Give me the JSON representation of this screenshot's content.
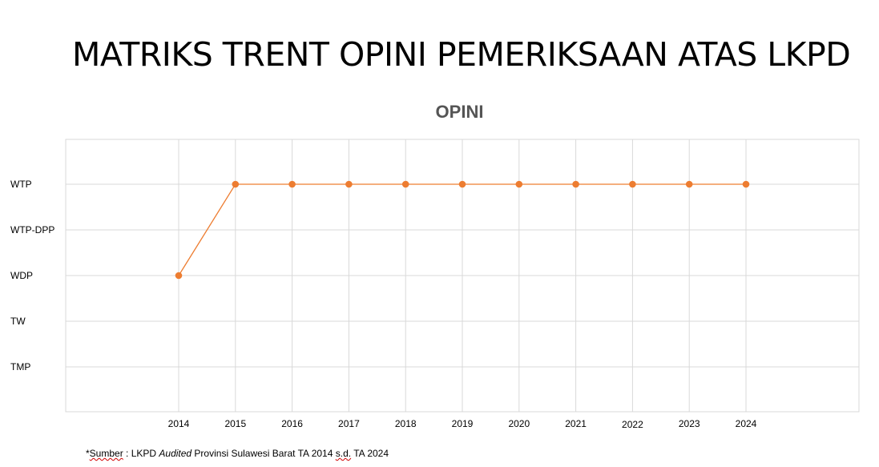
{
  "title": "MATRIKS TRENT OPINI PEMERIKSAAN ATAS LKPD",
  "chart_data": {
    "type": "line",
    "title": "OPINI",
    "y_categories": [
      "TMP",
      "TW",
      "WDP",
      "WTP-DPP",
      "WTP"
    ],
    "x": [
      "2014",
      "2015",
      "2016",
      "2017",
      "2018",
      "2019",
      "2020",
      "2021",
      "2022",
      "2023",
      "2024"
    ],
    "series": [
      {
        "values": [
          "WDP",
          "WTP",
          "WTP",
          "WTP",
          "WTP",
          "WTP",
          "WTP",
          "WTP",
          "WTP",
          "WTP",
          "WTP"
        ],
        "color": "#ed7d31"
      }
    ],
    "grid": true,
    "legend": "none"
  },
  "source": {
    "star": "*",
    "sumber": "Sumber",
    "part1": " : LKPD ",
    "audited": "Audited",
    "part2": " Provinsi Sulawesi Barat TA 2014 ",
    "sd": "s.d.",
    "part3": " TA 2024"
  }
}
